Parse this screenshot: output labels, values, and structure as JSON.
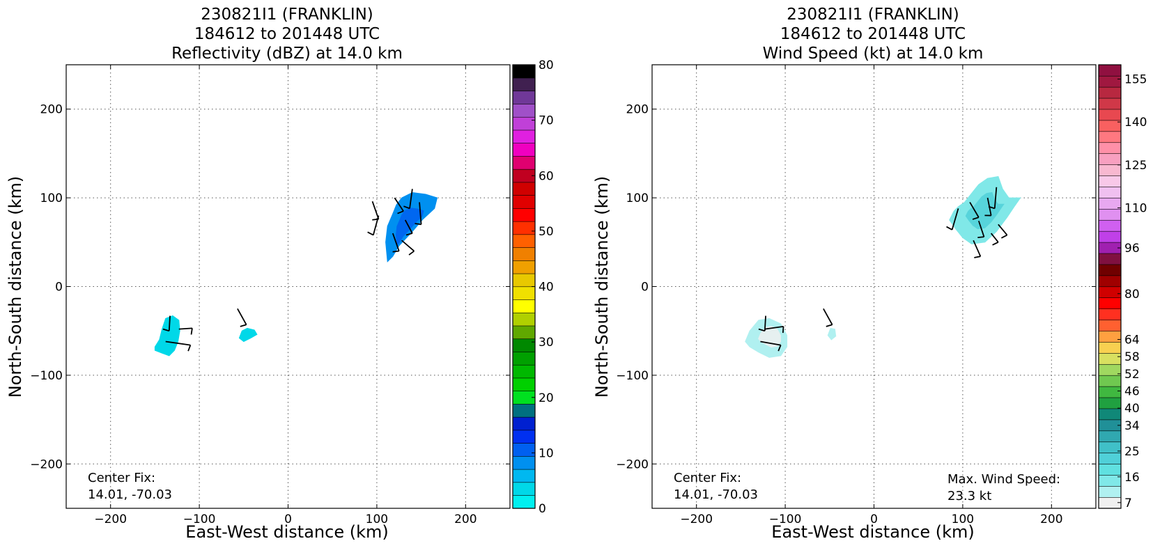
{
  "chart_data": [
    {
      "type": "heatmap",
      "title": [
        "230821I1 (FRANKLIN)",
        "184612 to 201448 UTC",
        "Reflectivity (dBZ) at 14.0 km"
      ],
      "xlabel": "East-West distance (km)",
      "ylabel": "North-South distance (km)",
      "xlim": [
        -250,
        250
      ],
      "ylim": [
        -250,
        250
      ],
      "xticks": [
        -200,
        -100,
        0,
        100,
        200
      ],
      "yticks": [
        -200,
        -100,
        0,
        100,
        200
      ],
      "xtick_labels": [
        "−200",
        "−100",
        "0",
        "100",
        "200"
      ],
      "ytick_labels": [
        "−200",
        "−100",
        "0",
        "100",
        "200"
      ],
      "grid": true,
      "colorbar": {
        "min": 0,
        "max": 80,
        "ticks": [
          0,
          10,
          20,
          30,
          40,
          50,
          60,
          70,
          80
        ],
        "tick_labels": [
          "0",
          "10",
          "20",
          "30",
          "40",
          "50",
          "60",
          "70",
          "80"
        ],
        "colors": [
          "#00f0f0",
          "#00d8e8",
          "#00b8f0",
          "#0090f0",
          "#0060f0",
          "#0030f0",
          "#0020d0",
          "#007080",
          "#00e020",
          "#00d000",
          "#00b800",
          "#00a000",
          "#008800",
          "#60a800",
          "#b0d000",
          "#ffff00",
          "#f0e000",
          "#e8c800",
          "#f0a000",
          "#f08000",
          "#ff6000",
          "#ff3000",
          "#ff0000",
          "#e00000",
          "#d00000",
          "#c00020",
          "#e00070",
          "#f000c0",
          "#e020e0",
          "#c040d8",
          "#a050c8",
          "#703898",
          "#402050",
          "#000000"
        ]
      },
      "regions": [
        {
          "center": [
            135,
            68
          ],
          "points": [
            [
              112,
              28
            ],
            [
              110,
              50
            ],
            [
              112,
              68
            ],
            [
              118,
              82
            ],
            [
              122,
              92
            ],
            [
              128,
              100
            ],
            [
              140,
              106
            ],
            [
              155,
              104
            ],
            [
              168,
              100
            ],
            [
              165,
              88
            ],
            [
              152,
              76
            ],
            [
              140,
              62
            ],
            [
              125,
              46
            ],
            [
              118,
              34
            ]
          ],
          "color": "#0090f0",
          "inner_color": "#0060f0"
        },
        {
          "center": [
            -130,
            -57
          ],
          "points": [
            [
              -150,
              -68
            ],
            [
              -145,
              -60
            ],
            [
              -142,
              -48
            ],
            [
              -138,
              -36
            ],
            [
              -130,
              -33
            ],
            [
              -123,
              -38
            ],
            [
              -122,
              -50
            ],
            [
              -124,
              -62
            ],
            [
              -128,
              -72
            ],
            [
              -134,
              -78
            ],
            [
              -142,
              -75
            ],
            [
              -150,
              -72
            ]
          ],
          "color": "#00d8e8"
        },
        {
          "center": [
            -45,
            -53
          ],
          "points": [
            [
              -55,
              -58
            ],
            [
              -52,
              -50
            ],
            [
              -46,
              -47
            ],
            [
              -38,
              -49
            ],
            [
              -35,
              -54
            ],
            [
              -42,
              -58
            ],
            [
              -50,
              -62
            ]
          ],
          "color": "#00d8e8"
        }
      ],
      "barbs": [
        [
          [
            120,
            100
          ],
          [
            130,
            85
          ]
        ],
        [
          [
            140,
            110
          ],
          [
            137,
            88
          ]
        ],
        [
          [
            148,
            95
          ],
          [
            150,
            70
          ]
        ],
        [
          [
            132,
            75
          ],
          [
            140,
            60
          ]
        ],
        [
          [
            118,
            60
          ],
          [
            125,
            40
          ]
        ],
        [
          [
            128,
            52
          ],
          [
            142,
            40
          ]
        ],
        [
          [
            102,
            80
          ],
          [
            96,
            58
          ]
        ],
        [
          [
            95,
            96
          ],
          [
            102,
            76
          ]
        ],
        [
          [
            -133,
            -33
          ],
          [
            -134,
            -50
          ]
        ],
        [
          [
            -123,
            -48
          ],
          [
            -108,
            -47
          ]
        ],
        [
          [
            -138,
            -62
          ],
          [
            -110,
            -66
          ]
        ],
        [
          [
            -57,
            -25
          ],
          [
            -47,
            -43
          ]
        ]
      ],
      "annotations": {
        "center_fix_label": "Center Fix:",
        "center_fix_value": "14.01, -70.03"
      }
    },
    {
      "type": "heatmap",
      "title": [
        "230821I1 (FRANKLIN)",
        "184612 to 201448 UTC",
        "Wind Speed (kt) at 14.0 km"
      ],
      "xlabel": "East-West distance (km)",
      "ylabel": "North-South distance (km)",
      "xlim": [
        -250,
        250
      ],
      "ylim": [
        -250,
        250
      ],
      "xticks": [
        -200,
        -100,
        0,
        100,
        200
      ],
      "yticks": [
        -200,
        -100,
        0,
        100,
        200
      ],
      "xtick_labels": [
        "−200",
        "−100",
        "0",
        "100",
        "200"
      ],
      "ytick_labels": [
        "−200",
        "−100",
        "0",
        "100",
        "200"
      ],
      "grid": true,
      "colorbar": {
        "min": 5,
        "max": 160,
        "ticks": [
          7,
          16,
          25,
          34,
          40,
          46,
          52,
          58,
          64,
          80,
          96,
          110,
          125,
          140,
          155
        ],
        "tick_labels": [
          "7",
          "16",
          "25",
          "34",
          "40",
          "46",
          "52",
          "58",
          "64",
          "80",
          "96",
          "110",
          "125",
          "140",
          "155"
        ],
        "colors": [
          "#f0f0f0",
          "#b0f0f0",
          "#80e8e8",
          "#60e0e0",
          "#50d0d8",
          "#40c0c8",
          "#30a8b0",
          "#209098",
          "#108878",
          "#20a040",
          "#40b840",
          "#70c850",
          "#a0d860",
          "#d8e060",
          "#f8d050",
          "#ffa040",
          "#ff6030",
          "#ff3020",
          "#ff0000",
          "#d00000",
          "#a00000",
          "#700000",
          "#801040",
          "#a020b0",
          "#c040e8",
          "#d060f0",
          "#e090f0",
          "#e8a8f0",
          "#f0c0f0",
          "#f8c8e8",
          "#f8b8d0",
          "#f8a0c0",
          "#ff90a8",
          "#ff7880",
          "#f86060",
          "#e84850",
          "#d03848",
          "#b82840",
          "#a01840",
          "#901040"
        ]
      },
      "regions": [
        {
          "center": [
            125,
            85
          ],
          "points": [
            [
              85,
              75
            ],
            [
              90,
              85
            ],
            [
              95,
              90
            ],
            [
              102,
              95
            ],
            [
              110,
              105
            ],
            [
              118,
              115
            ],
            [
              128,
              122
            ],
            [
              140,
              124
            ],
            [
              145,
              110
            ],
            [
              152,
              100
            ],
            [
              165,
              100
            ],
            [
              158,
              90
            ],
            [
              150,
              78
            ],
            [
              138,
              62
            ],
            [
              125,
              50
            ],
            [
              110,
              48
            ],
            [
              100,
              55
            ],
            [
              92,
              65
            ]
          ],
          "color": "#80e8e8",
          "inner_color": "#50d0d8"
        },
        {
          "center": [
            -113,
            -55
          ],
          "points": [
            [
              -145,
              -62
            ],
            [
              -140,
              -50
            ],
            [
              -130,
              -38
            ],
            [
              -118,
              -36
            ],
            [
              -105,
              -42
            ],
            [
              -98,
              -55
            ],
            [
              -98,
              -68
            ],
            [
              -105,
              -78
            ],
            [
              -118,
              -80
            ],
            [
              -130,
              -74
            ],
            [
              -140,
              -68
            ]
          ],
          "color": "#b0f0f0",
          "inner_color": "#f0f0f0"
        },
        {
          "center": [
            -47,
            -52
          ],
          "points": [
            [
              -52,
              -55
            ],
            [
              -49,
              -47
            ],
            [
              -44,
              -48
            ],
            [
              -43,
              -56
            ],
            [
              -48,
              -60
            ]
          ],
          "color": "#b0f0f0"
        }
      ],
      "barbs": [
        [
          [
            108,
            95
          ],
          [
            118,
            78
          ]
        ],
        [
          [
            128,
            100
          ],
          [
            132,
            80
          ]
        ],
        [
          [
            138,
            112
          ],
          [
            136,
            88
          ]
        ],
        [
          [
            118,
            74
          ],
          [
            124,
            56
          ]
        ],
        [
          [
            112,
            52
          ],
          [
            120,
            34
          ]
        ],
        [
          [
            132,
            60
          ],
          [
            140,
            50
          ]
        ],
        [
          [
            95,
            88
          ],
          [
            88,
            64
          ]
        ],
        [
          [
            140,
            70
          ],
          [
            150,
            58
          ]
        ],
        [
          [
            -122,
            -33
          ],
          [
            -123,
            -50
          ]
        ],
        [
          [
            -123,
            -48
          ],
          [
            -102,
            -45
          ]
        ],
        [
          [
            -128,
            -62
          ],
          [
            -105,
            -66
          ]
        ],
        [
          [
            -57,
            -25
          ],
          [
            -47,
            -43
          ]
        ]
      ],
      "annotations": {
        "center_fix_label": "Center Fix:",
        "center_fix_value": "14.01, -70.03",
        "max_wind_label": "Max. Wind Speed:",
        "max_wind_value": "23.3 kt"
      }
    }
  ]
}
